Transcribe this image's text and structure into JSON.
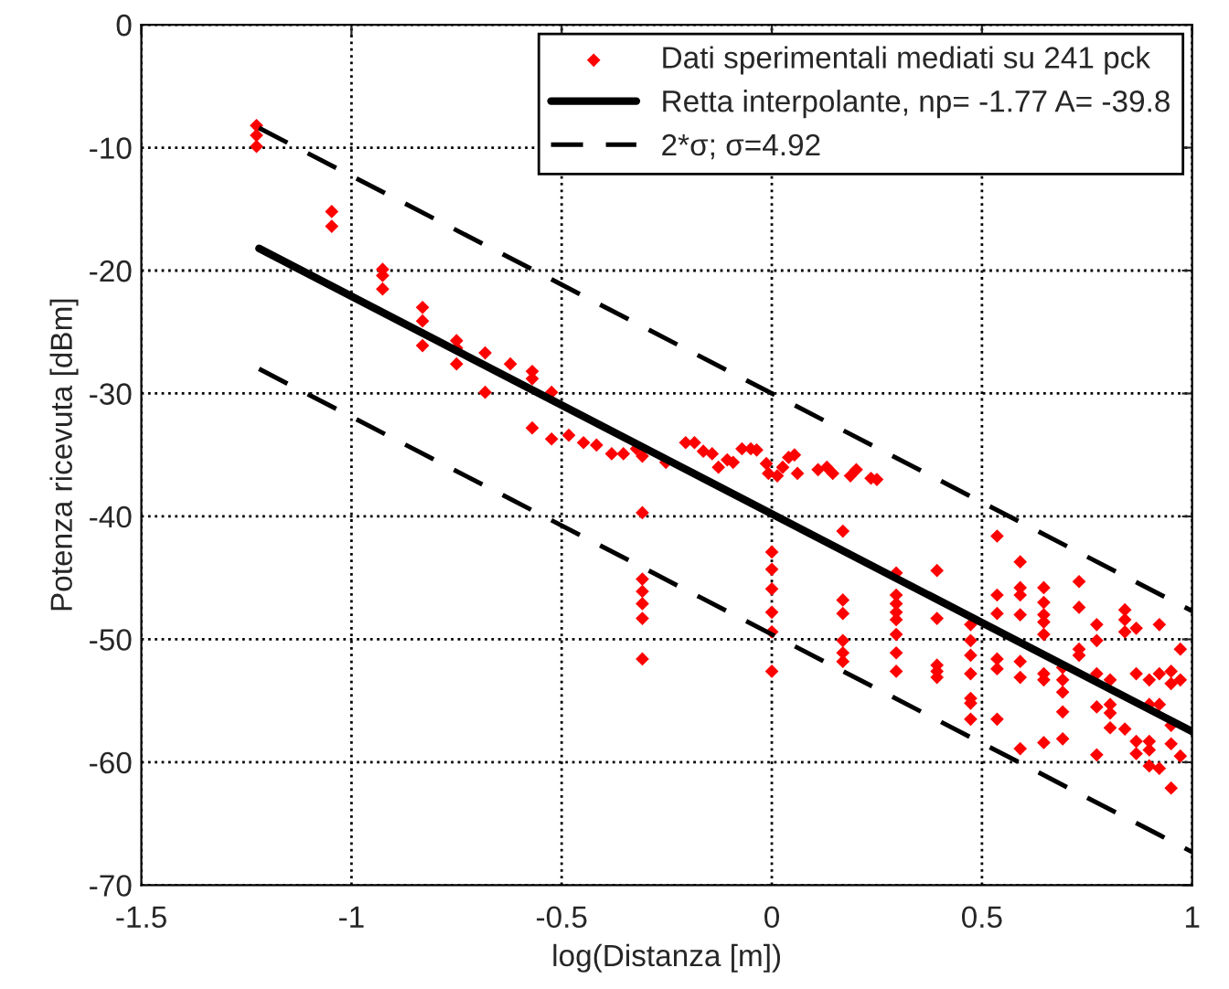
{
  "chart_data": {
    "type": "scatter",
    "xlabel": "log(Distanza [m])",
    "ylabel": "Potenza ricevuta [dBm]",
    "xlim": [
      -1.5,
      1
    ],
    "xticks": [
      -1.5,
      -1,
      -0.5,
      0,
      0.5,
      1
    ],
    "ylim": [
      -70,
      0
    ],
    "yticks": [
      -70,
      -60,
      -50,
      -40,
      -30,
      -20,
      -10,
      0
    ],
    "grid": true,
    "legend": "top right",
    "series": [
      {
        "name": "Dati sperimentali mediati su 241 pck",
        "color": "#ff0000",
        "marker": "diamond",
        "x": [
          -1.226,
          -1.226,
          -1.226,
          -1.047,
          -1.047,
          -0.926,
          -0.926,
          -0.926,
          -0.831,
          -0.831,
          -0.831,
          -0.75,
          -0.75,
          -0.75,
          -0.682,
          -0.682,
          -0.622,
          -0.57,
          -0.57,
          -0.57,
          -0.524,
          -0.524,
          -0.483,
          -0.448,
          -0.417,
          -0.381,
          -0.353,
          -0.322,
          -0.308,
          -0.252,
          -0.205,
          -0.184,
          -0.163,
          -0.142,
          -0.127,
          -0.308,
          -0.308,
          -0.308,
          -0.308,
          -0.308,
          -0.308,
          -0.106,
          -0.092,
          -0.071,
          -0.05,
          -0.036,
          -0.013,
          -0.008,
          0.0,
          0.0,
          0.0,
          0.0,
          0.0,
          0.0,
          0.013,
          0.026,
          0.04,
          0.054,
          0.061,
          0.11,
          0.131,
          0.145,
          0.187,
          0.201,
          0.236,
          0.25,
          0.169,
          0.169,
          0.169,
          0.169,
          0.169,
          0.169,
          0.296,
          0.296,
          0.296,
          0.296,
          0.296,
          0.296,
          0.296,
          0.296,
          0.393,
          0.393,
          0.393,
          0.393,
          0.393,
          0.473,
          0.473,
          0.473,
          0.473,
          0.473,
          0.473,
          0.473,
          0.536,
          0.536,
          0.536,
          0.536,
          0.536,
          0.536,
          0.591,
          0.591,
          0.591,
          0.591,
          0.591,
          0.591,
          0.591,
          0.647,
          0.647,
          0.647,
          0.647,
          0.647,
          0.647,
          0.647,
          0.647,
          0.692,
          0.692,
          0.692,
          0.692,
          0.692,
          0.731,
          0.731,
          0.731,
          0.731,
          0.773,
          0.773,
          0.773,
          0.773,
          0.773,
          0.805,
          0.805,
          0.805,
          0.805,
          0.84,
          0.84,
          0.84,
          0.84,
          0.867,
          0.867,
          0.867,
          0.867,
          0.898,
          0.898,
          0.898,
          0.898,
          0.898,
          0.922,
          0.922,
          0.922,
          0.922,
          0.95,
          0.95,
          0.95,
          0.95,
          0.95,
          0.972,
          0.972,
          0.972
        ],
        "values": [
          -8.2,
          -9.0,
          -9.9,
          -15.2,
          -16.4,
          -19.9,
          -20.4,
          -21.5,
          -23.0,
          -24.1,
          -26.1,
          -25.7,
          -26.3,
          -27.6,
          -26.7,
          -29.9,
          -27.6,
          -28.2,
          -28.8,
          -32.8,
          -29.9,
          -33.7,
          -33.4,
          -34.0,
          -34.2,
          -34.9,
          -34.9,
          -34.5,
          -35.1,
          -35.6,
          -34.0,
          -34.0,
          -34.7,
          -34.9,
          -36.0,
          -39.7,
          -45.1,
          -46.1,
          -47.1,
          -48.3,
          -51.6,
          -35.4,
          -35.6,
          -34.5,
          -34.5,
          -34.6,
          -35.7,
          -36.5,
          -42.9,
          -44.3,
          -45.9,
          -47.8,
          -49.4,
          -52.6,
          -36.7,
          -36.0,
          -35.2,
          -35.0,
          -36.5,
          -36.2,
          -36.0,
          -36.5,
          -36.7,
          -36.2,
          -36.9,
          -37.0,
          -41.2,
          -46.8,
          -47.9,
          -50.1,
          -51.1,
          -51.8,
          -44.6,
          -46.4,
          -47.1,
          -47.8,
          -48.4,
          -49.6,
          -51.1,
          -52.6,
          -44.4,
          -48.3,
          -52.1,
          -52.6,
          -53.1,
          -48.8,
          -50.1,
          -51.3,
          -52.8,
          -54.8,
          -55.2,
          -56.5,
          -41.6,
          -46.4,
          -47.9,
          -51.6,
          -52.4,
          -56.5,
          -43.7,
          -45.8,
          -46.4,
          -48.0,
          -51.8,
          -53.1,
          -58.9,
          -45.8,
          -47.0,
          -48.0,
          -48.6,
          -49.6,
          -52.8,
          -53.3,
          -58.4,
          -52.3,
          -53.3,
          -54.3,
          -55.9,
          -58.1,
          -45.3,
          -47.4,
          -50.8,
          -51.3,
          -48.8,
          -50.1,
          -52.8,
          -55.5,
          -59.4,
          -53.3,
          -55.3,
          -56.0,
          -57.2,
          -47.6,
          -48.4,
          -49.4,
          -57.3,
          -49.1,
          -52.8,
          -58.3,
          -59.3,
          -53.3,
          -55.3,
          -58.3,
          -59.0,
          -60.3,
          -48.8,
          -52.8,
          -55.3,
          -60.5,
          -52.6,
          -53.6,
          -57.0,
          -58.5,
          -62.1,
          -50.8,
          -53.3,
          -59.5
        ]
      },
      {
        "name": "Retta interpolante, np= -1.77 A= -39.8",
        "type": "line",
        "color": "#000000",
        "line_style": "solid",
        "x": [
          -1.22,
          1
        ],
        "values": [
          -18.2,
          -57.5
        ]
      },
      {
        "name": "2*σ; σ=4.92",
        "type": "line",
        "color": "#000000",
        "line_style": "dashed",
        "x": [
          -1.22,
          1
        ],
        "values": [
          -8.4,
          -47.7
        ]
      },
      {
        "type": "line",
        "color": "#000000",
        "line_style": "dashed",
        "x": [
          -1.22,
          1
        ],
        "values": [
          -28.0,
          -67.3
        ]
      }
    ]
  }
}
